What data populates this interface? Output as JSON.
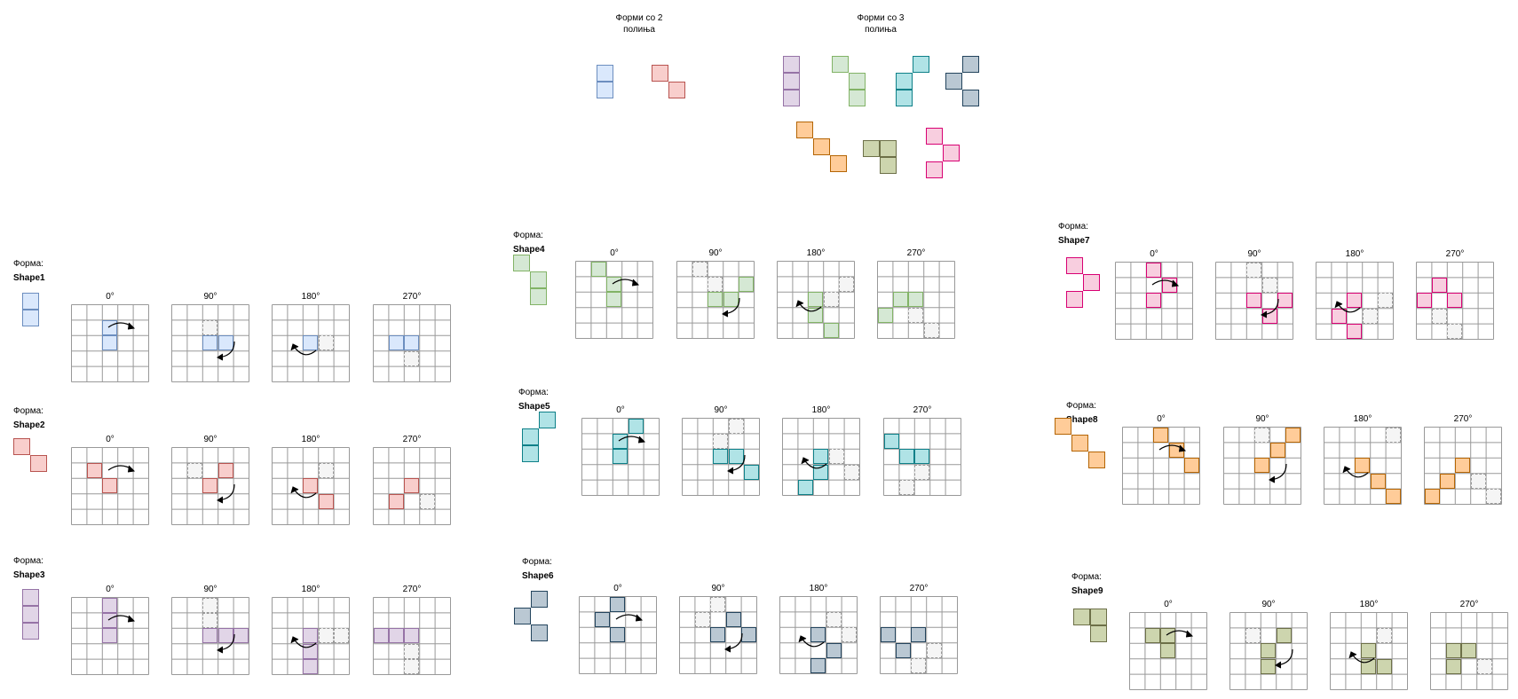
{
  "header": {
    "two_cell_title": [
      "Форми со 2",
      "полиња"
    ],
    "three_cell_title": [
      "Форми со 3",
      "полиња"
    ]
  },
  "label_prefix": "Форма:",
  "angles": [
    "0°",
    "90°",
    "180°",
    "270°"
  ],
  "colors": {
    "blue": {
      "fill": "#dae8fc",
      "stroke": "#6c8ebf"
    },
    "red": {
      "fill": "#f8cecc",
      "stroke": "#b85450"
    },
    "purple": {
      "fill": "#e1d5e7",
      "stroke": "#9673a6"
    },
    "green": {
      "fill": "#d5e8d4",
      "stroke": "#82b366"
    },
    "cyan": {
      "fill": "#b0e3e6",
      "stroke": "#0e8088"
    },
    "slate": {
      "fill": "#bac8d3",
      "stroke": "#23445d"
    },
    "orange": {
      "fill": "#ffcc99",
      "stroke": "#b46504"
    },
    "olive": {
      "fill": "#cdd5ae",
      "stroke": "#6d7048"
    },
    "pink": {
      "fill": "#f8cedf",
      "stroke": "#d80073"
    },
    "grid": "#999999"
  },
  "shapes": [
    {
      "name": "Shape1",
      "color": "blue"
    },
    {
      "name": "Shape2",
      "color": "red"
    },
    {
      "name": "Shape3",
      "color": "purple"
    },
    {
      "name": "Shape4",
      "color": "green"
    },
    {
      "name": "Shape5",
      "color": "cyan"
    },
    {
      "name": "Shape6",
      "color": "slate"
    },
    {
      "name": "Shape7",
      "color": "pink"
    },
    {
      "name": "Shape8",
      "color": "orange"
    },
    {
      "name": "Shape9",
      "color": "olive"
    }
  ]
}
